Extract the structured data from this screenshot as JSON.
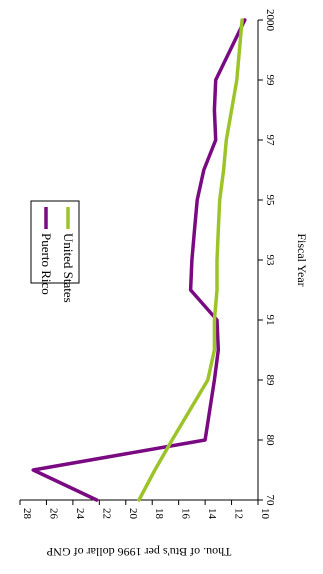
{
  "chart_data": {
    "type": "line",
    "orientation": "rotated-90-clockwise",
    "categories": [
      "70",
      "75",
      "80",
      "89",
      "90",
      "91",
      "92",
      "93",
      "94",
      "95",
      "96",
      "97",
      "98",
      "99",
      "2000"
    ],
    "tick_categories": [
      "70",
      "80",
      "89",
      "91",
      "93",
      "95",
      "97",
      "99",
      "2000"
    ],
    "series": [
      {
        "name": "Puerto Rico",
        "color": "#7a0a82",
        "values": [
          22.2,
          27.0,
          14.0,
          13.3,
          13.0,
          13.1,
          15.1,
          15.0,
          14.8,
          14.6,
          14.1,
          13.2,
          13.3,
          13.2,
          11.0
        ]
      },
      {
        "name": "United States",
        "color": "#9cc42a",
        "values": [
          19.0,
          17.8,
          16.5,
          13.8,
          13.3,
          13.3,
          13.1,
          13.1,
          13.0,
          12.9,
          12.6,
          12.4,
          12.0,
          11.6,
          11.2
        ]
      }
    ],
    "xlabel": "Fiscal Year",
    "ylabel": "Thou. of Btu's per 1996 dollar of GNP",
    "ylim": [
      10,
      28
    ],
    "yticks": [
      10,
      12,
      14,
      16,
      18,
      20,
      22,
      24,
      26,
      28
    ],
    "grid": false,
    "legend_position": "top-left"
  }
}
